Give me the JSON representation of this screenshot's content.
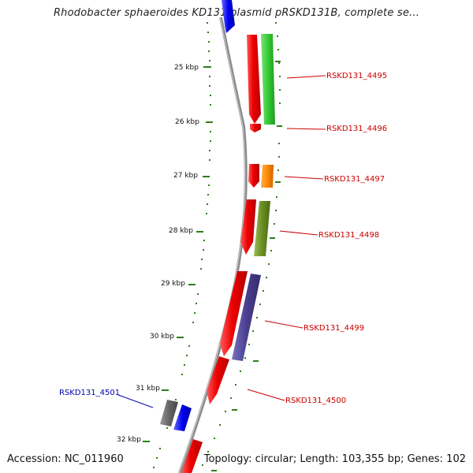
{
  "header": {
    "title": "Rhodobacter sphaeroides KD131 plasmid pRSKD131B, complete se..."
  },
  "footer": {
    "accession": "Accession: NC_011960",
    "summary": "Topology: circular; Length: 103,355 bp; Genes: 102"
  },
  "scale": {
    "ticks": [
      {
        "label": "25 kbp",
        "kbp": 25
      },
      {
        "label": "26 kbp",
        "kbp": 26
      },
      {
        "label": "27 kbp",
        "kbp": 27
      },
      {
        "label": "28 kbp",
        "kbp": 28
      },
      {
        "label": "29 kbp",
        "kbp": 29
      },
      {
        "label": "30 kbp",
        "kbp": 30
      },
      {
        "label": "31 kbp",
        "kbp": 31
      },
      {
        "label": "32 kbp",
        "kbp": 32
      }
    ]
  },
  "genes": [
    {
      "label": "RSKD131_4495",
      "color": "#cc0000",
      "side": "right"
    },
    {
      "label": "RSKD131_4496",
      "color": "#cc0000",
      "side": "right"
    },
    {
      "label": "RSKD131_4497",
      "color": "#cc0000",
      "side": "right"
    },
    {
      "label": "RSKD131_4498",
      "color": "#cc0000",
      "side": "right"
    },
    {
      "label": "RSKD131_4499",
      "color": "#cc0000",
      "side": "right"
    },
    {
      "label": "RSKD131_4500",
      "color": "#cc0000",
      "side": "right"
    },
    {
      "label": "RSKD131_4501",
      "color": "#0000aa",
      "side": "left"
    }
  ],
  "colors": {
    "backbone": "#8c8c8c",
    "tick": "#2e7d1a",
    "red_feature": "#ee0000",
    "blue_feature": "#0000ee",
    "green_feature": "#33cc33",
    "orange_feature": "#ff8800",
    "olive_feature": "#6b8e23",
    "purple_feature": "#4a3f8f",
    "gray_feature": "#666666"
  }
}
